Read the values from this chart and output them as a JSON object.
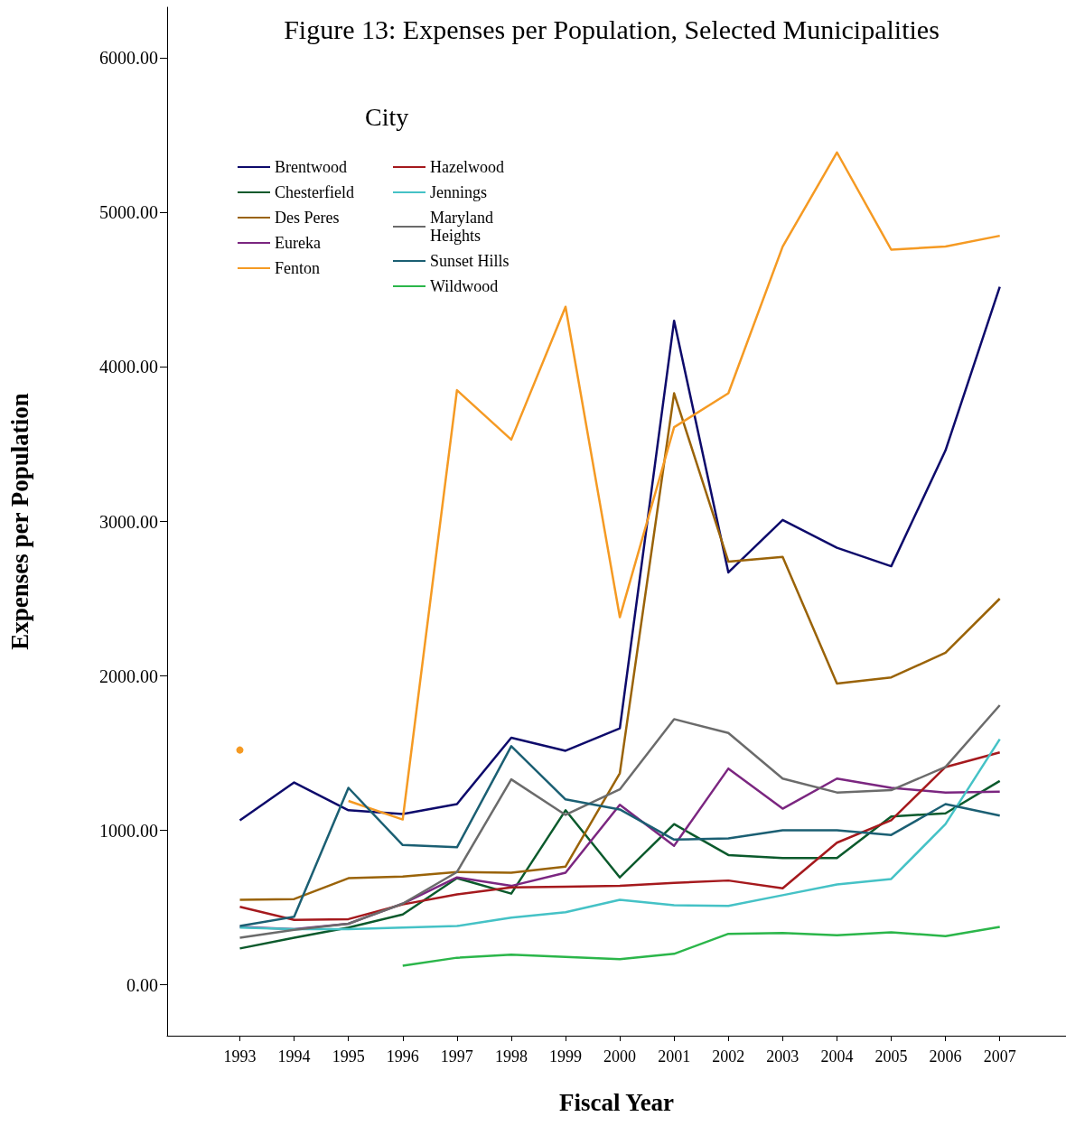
{
  "chart_data": {
    "type": "line",
    "title": "Figure 13: Expenses per Population, Selected Municipalities",
    "xlabel": "Fiscal Year",
    "ylabel": "Expenses per Population",
    "legend_title": "City",
    "x": [
      1993,
      1994,
      1995,
      1996,
      1997,
      1998,
      1999,
      2000,
      2001,
      2002,
      2003,
      2004,
      2005,
      2006,
      2007
    ],
    "series": [
      {
        "name": "Brentwood",
        "color": "#0d0a6b",
        "values": [
          1064,
          1310,
          1130,
          1105,
          1170,
          1600,
          1515,
          1660,
          4300,
          2670,
          3010,
          2830,
          2710,
          3460,
          4520
        ]
      },
      {
        "name": "Chesterfield",
        "color": "#0b5a2c",
        "values": [
          235,
          305,
          370,
          455,
          690,
          590,
          1130,
          695,
          1040,
          840,
          820,
          820,
          1090,
          1110,
          1320
        ]
      },
      {
        "name": "Des Peres",
        "color": "#9a6308",
        "values": [
          550,
          555,
          690,
          700,
          730,
          725,
          765,
          1370,
          3830,
          2740,
          2770,
          1950,
          1990,
          2150,
          2500
        ]
      },
      {
        "name": "Eureka",
        "color": "#7b2680",
        "values": [
          375,
          360,
          395,
          525,
          695,
          640,
          725,
          1165,
          900,
          1400,
          1140,
          1335,
          1275,
          1245,
          1250
        ]
      },
      {
        "name": "Fenton",
        "color": "#f59a23",
        "values": [
          1520,
          null,
          1190,
          1070,
          3850,
          3530,
          4390,
          2380,
          3610,
          3830,
          4780,
          5390,
          4760,
          4780,
          4850
        ]
      },
      {
        "name": "Hazelwood",
        "color": "#a5191d",
        "values": [
          505,
          420,
          425,
          520,
          585,
          630,
          635,
          640,
          660,
          675,
          625,
          920,
          1065,
          1410,
          1505
        ]
      },
      {
        "name": "Jennings",
        "color": "#45c2c6",
        "values": [
          370,
          360,
          360,
          370,
          380,
          435,
          470,
          550,
          515,
          510,
          580,
          650,
          685,
          1040,
          1590
        ]
      },
      {
        "name": "Maryland Heights",
        "color": "#6b6b6b",
        "values": [
          305,
          355,
          395,
          525,
          730,
          1330,
          1100,
          1265,
          1720,
          1630,
          1335,
          1245,
          1260,
          1410,
          1810
        ]
      },
      {
        "name": "Sunset Hills",
        "color": "#1b5f73",
        "values": [
          380,
          440,
          1275,
          905,
          890,
          1545,
          1200,
          1135,
          940,
          947,
          1000,
          1000,
          970,
          1170,
          1095
        ]
      },
      {
        "name": "Wildwood",
        "color": "#2bb64a",
        "values": [
          null,
          null,
          null,
          123,
          175,
          195,
          180,
          165,
          200,
          330,
          335,
          320,
          340,
          315,
          375
        ]
      }
    ],
    "xlim": [
      1991.66,
      2008.22
    ],
    "xticks": [
      1993,
      1994,
      1995,
      1996,
      1997,
      1998,
      1999,
      2000,
      2001,
      2002,
      2003,
      2004,
      2005,
      2006,
      2007
    ],
    "ylim": [
      -330,
      6330
    ],
    "yticks": [
      {
        "value": 0,
        "label": "0.00"
      },
      {
        "value": 1000,
        "label": "1000.00"
      },
      {
        "value": 2000,
        "label": "2000.00"
      },
      {
        "value": 3000,
        "label": "3000.00"
      },
      {
        "value": 4000,
        "label": "4000.00"
      },
      {
        "value": 5000,
        "label": "5000.00"
      },
      {
        "value": 6000,
        "label": "6000.00"
      }
    ],
    "grid": false,
    "legend": "top left",
    "marker": "none",
    "line_style": "solid"
  }
}
